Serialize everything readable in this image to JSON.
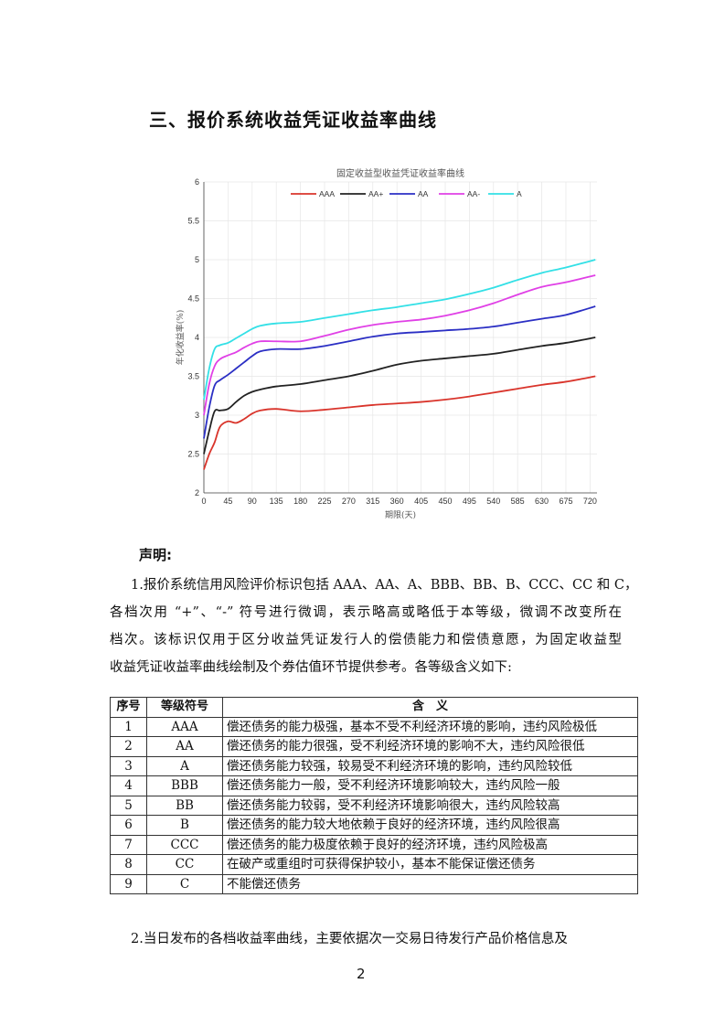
{
  "heading": "三、报价系统收益凭证收益率曲线",
  "chart_data": {
    "type": "line",
    "title": "固定收益型收益凭证收益率曲线",
    "xlabel": "期限(天)",
    "ylabel": "年化收益率(%)",
    "xlim": [
      0,
      733
    ],
    "ylim": [
      2,
      6
    ],
    "xticks": [
      0,
      45,
      90,
      135,
      180,
      225,
      270,
      315,
      360,
      405,
      450,
      495,
      540,
      585,
      630,
      675,
      720
    ],
    "yticks": [
      2,
      2.5,
      3,
      3.5,
      4,
      4.5,
      5,
      5.5,
      6
    ],
    "grid": true,
    "legend": "top-center",
    "x": [
      0,
      10,
      20,
      30,
      45,
      60,
      75,
      90,
      105,
      135,
      180,
      225,
      270,
      315,
      360,
      405,
      450,
      495,
      540,
      585,
      630,
      675,
      730
    ],
    "series": [
      {
        "name": "AAA",
        "color": "#d9342b",
        "values": [
          2.3,
          2.5,
          2.65,
          2.85,
          2.92,
          2.9,
          2.95,
          3.02,
          3.06,
          3.08,
          3.05,
          3.07,
          3.1,
          3.13,
          3.15,
          3.17,
          3.2,
          3.24,
          3.29,
          3.34,
          3.39,
          3.43,
          3.5
        ]
      },
      {
        "name": "AA+",
        "color": "#222222",
        "values": [
          2.5,
          2.8,
          3.05,
          3.06,
          3.08,
          3.17,
          3.25,
          3.3,
          3.33,
          3.37,
          3.4,
          3.45,
          3.5,
          3.57,
          3.65,
          3.7,
          3.73,
          3.76,
          3.79,
          3.84,
          3.89,
          3.93,
          4.0
        ]
      },
      {
        "name": "AA",
        "color": "#2b2fc4",
        "values": [
          2.7,
          3.1,
          3.38,
          3.45,
          3.52,
          3.6,
          3.68,
          3.76,
          3.82,
          3.85,
          3.85,
          3.89,
          3.95,
          4.01,
          4.05,
          4.07,
          4.09,
          4.11,
          4.14,
          4.19,
          4.24,
          4.29,
          4.4
        ]
      },
      {
        "name": "AA-",
        "color": "#e040e6",
        "values": [
          3.0,
          3.4,
          3.63,
          3.72,
          3.77,
          3.81,
          3.87,
          3.92,
          3.95,
          3.95,
          3.95,
          4.02,
          4.1,
          4.16,
          4.2,
          4.23,
          4.28,
          4.35,
          4.44,
          4.55,
          4.65,
          4.71,
          4.8
        ]
      },
      {
        "name": "A",
        "color": "#33e0e6",
        "values": [
          3.2,
          3.6,
          3.85,
          3.9,
          3.93,
          3.99,
          4.05,
          4.11,
          4.15,
          4.18,
          4.2,
          4.25,
          4.3,
          4.35,
          4.39,
          4.44,
          4.49,
          4.56,
          4.64,
          4.74,
          4.83,
          4.9,
          5.0
        ]
      }
    ]
  },
  "declaration": {
    "title": "声明:",
    "para1_lines": [
      "1.报价系统信用风险评价标识包括 AAA、AA、A、BBB、BB、B、CCC、CC 和 C，",
      "各档次用 “+”、“-” 符号进行微调，表示略高或略低于本等级，微调不改变所在",
      "档次。该标识仅用于区分收益凭证发行人的偿债能力和偿债意愿，为固定收益型",
      "收益凭证收益率曲线绘制及个券估值环节提供参考。各等级含义如下:"
    ],
    "table": {
      "headers": [
        "序号",
        "等级符号",
        "含　义"
      ],
      "rows": [
        [
          "1",
          "AAA",
          "偿还债务的能力极强，基本不受不利经济环境的影响，违约风险极低"
        ],
        [
          "2",
          "AA",
          "偿还债务的能力很强，受不利经济环境的影响不大，违约风险很低"
        ],
        [
          "3",
          "A",
          "偿还债务能力较强，较易受不利经济环境的影响，违约风险较低"
        ],
        [
          "4",
          "BBB",
          "偿还债务能力一般，受不利经济环境影响较大，违约风险一般"
        ],
        [
          "5",
          "BB",
          "偿还债务能力较弱，受不利经济环境影响很大，违约风险较高"
        ],
        [
          "6",
          "B",
          "偿还债务的能力较大地依赖于良好的经济环境，违约风险很高"
        ],
        [
          "7",
          "CCC",
          "偿还债务的能力极度依赖于良好的经济环境，违约风险极高"
        ],
        [
          "8",
          "CC",
          "在破产或重组时可获得保护较小，基本不能保证偿还债务"
        ],
        [
          "9",
          "C",
          "不能偿还债务"
        ]
      ]
    },
    "para2": "2.当日发布的各档收益率曲线，主要依据次一交易日待发行产品价格信息及"
  },
  "page_number": "2"
}
